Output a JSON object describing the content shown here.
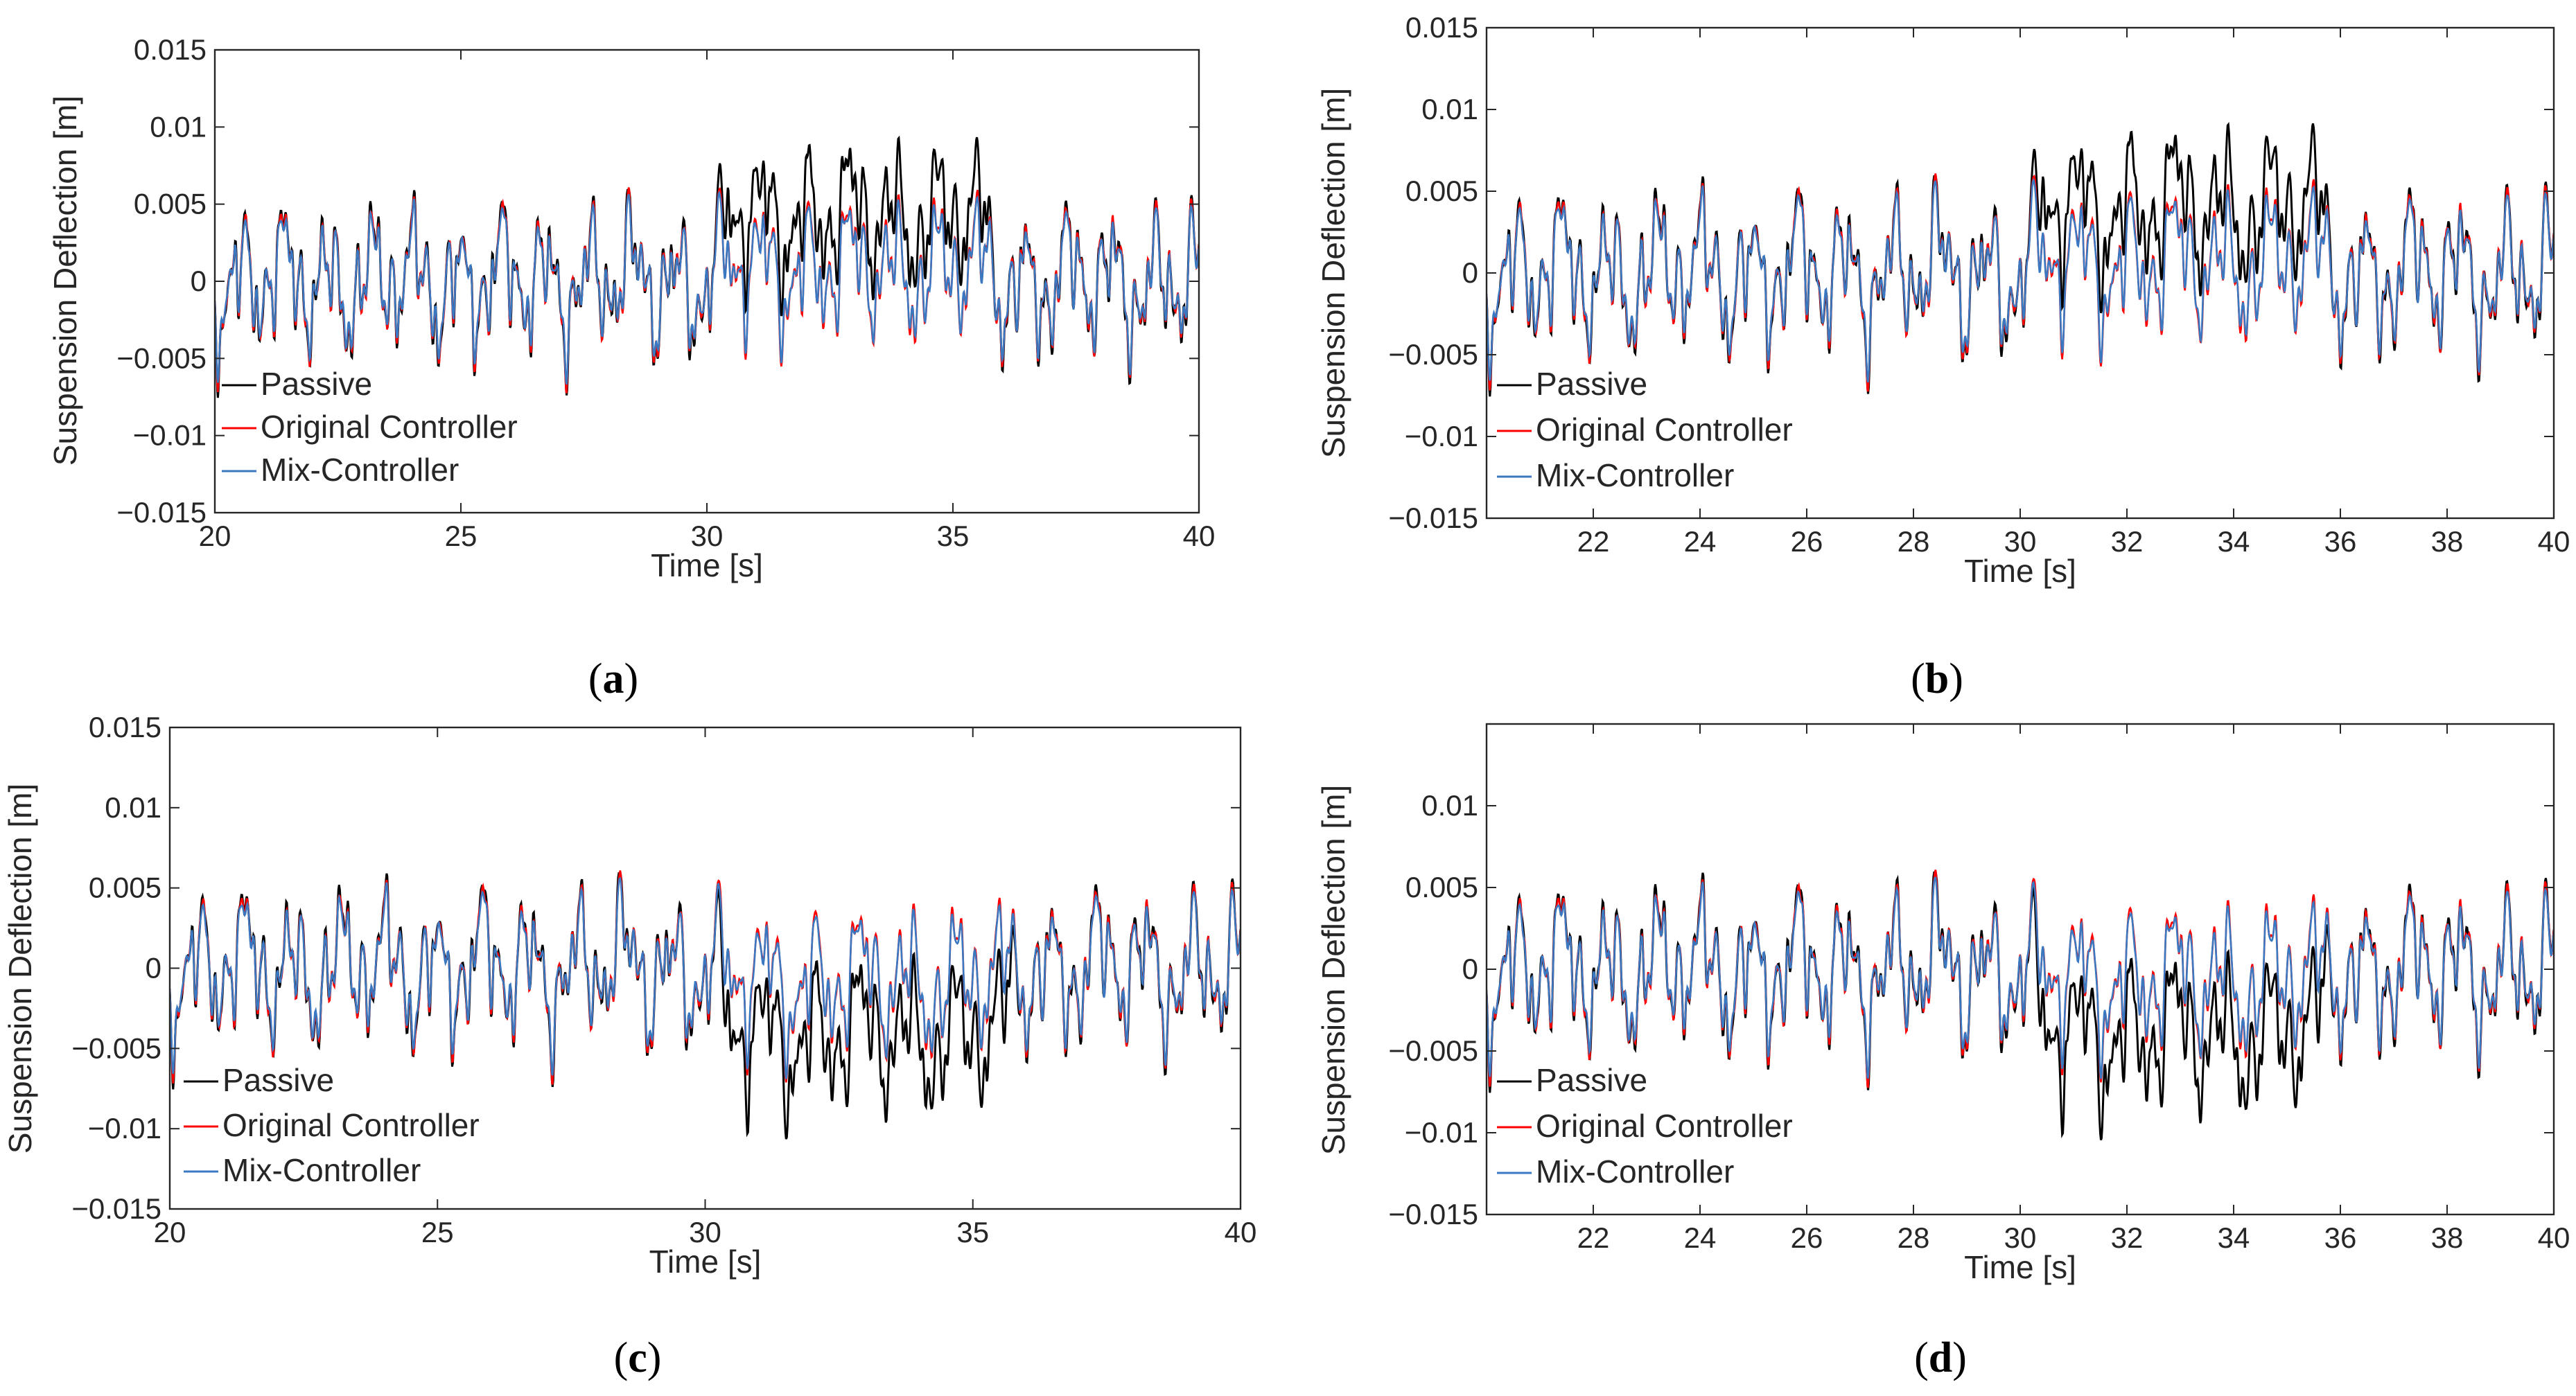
{
  "chart_data": [
    {
      "id": "a",
      "type": "line",
      "caption": "a",
      "xlabel": "Time [s]",
      "ylabel": "Suspension Deflection [m]",
      "xlim": [
        20,
        40
      ],
      "ylim": [
        -0.015,
        0.015
      ],
      "xticks": [
        20,
        25,
        30,
        35,
        40
      ],
      "yticks": [
        -0.015,
        -0.01,
        -0.005,
        0,
        0.005,
        0.01,
        0.015
      ],
      "xtick_labels": [
        "20",
        "25",
        "30",
        "35",
        "40"
      ],
      "ytick_labels": [
        "−0.015",
        "−0.01",
        "−0.005",
        "0",
        "0.005",
        "0.01",
        "0.015"
      ],
      "legend_placement": "lower-left",
      "disturbance": {
        "start": 30.3,
        "end": 35.7,
        "direction": 1,
        "passive_offset": 0.0042,
        "controlled_offset": 0.0008
      },
      "series": [
        {
          "name": "Passive",
          "color": "#000000"
        },
        {
          "name": "Original Controller",
          "color": "#ff0000"
        },
        {
          "name": "Mix-Controller",
          "color": "#3a78c2"
        }
      ]
    },
    {
      "id": "b",
      "type": "line",
      "caption": "b",
      "xlabel": "Time [s]",
      "ylabel": "Suspension Deflection [m]",
      "xlim": [
        20,
        40
      ],
      "ylim": [
        -0.015,
        0.015
      ],
      "xticks": [
        22,
        24,
        26,
        28,
        30,
        32,
        34,
        36,
        38,
        40
      ],
      "yticks": [
        -0.015,
        -0.01,
        -0.005,
        0,
        0.005,
        0.01,
        0.015
      ],
      "xtick_labels": [
        "22",
        "24",
        "26",
        "28",
        "30",
        "32",
        "34",
        "36",
        "38",
        "40"
      ],
      "ytick_labels": [
        "−0.015",
        "−0.01",
        "−0.005",
        "0",
        "0.005",
        "0.01",
        "0.015"
      ],
      "legend_placement": "lower-left",
      "disturbance": {
        "start": 30.3,
        "end": 35.7,
        "direction": 1,
        "passive_offset": 0.004,
        "controlled_offset": 0.0006
      },
      "series": [
        {
          "name": "Passive",
          "color": "#000000"
        },
        {
          "name": "Original Controller",
          "color": "#ff0000"
        },
        {
          "name": "Mix-Controller",
          "color": "#3a78c2"
        }
      ]
    },
    {
      "id": "c",
      "type": "line",
      "caption": "c",
      "xlabel": "Time [s]",
      "ylabel": "Suspension Deflection [m]",
      "xlim": [
        20,
        40
      ],
      "ylim": [
        -0.015,
        0.015
      ],
      "xticks": [
        20,
        25,
        30,
        35,
        40
      ],
      "yticks": [
        -0.015,
        -0.01,
        -0.005,
        0,
        0.005,
        0.01,
        0.015
      ],
      "xtick_labels": [
        "20",
        "25",
        "30",
        "35",
        "40"
      ],
      "ytick_labels": [
        "−0.015",
        "−0.01",
        "−0.005",
        "0",
        "0.005",
        "0.01",
        "0.015"
      ],
      "legend_placement": "lower-left",
      "disturbance": {
        "start": 30.3,
        "end": 35.7,
        "direction": -1,
        "passive_offset": 0.0042,
        "controlled_offset": 0.0008
      },
      "series": [
        {
          "name": "Passive",
          "color": "#000000"
        },
        {
          "name": "Original Controller",
          "color": "#ff0000"
        },
        {
          "name": "Mix-Controller",
          "color": "#3a78c2"
        }
      ]
    },
    {
      "id": "d",
      "type": "line",
      "caption": "d",
      "xlabel": "Time [s]",
      "ylabel": "Suspension Deflection [m]",
      "xlim": [
        20,
        40
      ],
      "ylim": [
        -0.015,
        0.015
      ],
      "xticks": [
        22,
        24,
        26,
        28,
        30,
        32,
        34,
        36,
        38,
        40
      ],
      "yticks": [
        -0.015,
        -0.01,
        -0.005,
        0,
        0.005,
        0.01
      ],
      "xtick_labels": [
        "22",
        "24",
        "26",
        "28",
        "30",
        "32",
        "34",
        "36",
        "38",
        "40"
      ],
      "ytick_labels": [
        "−0.015",
        "−0.01",
        "−0.005",
        "0",
        "0.005",
        "0.01"
      ],
      "legend_placement": "lower-left",
      "disturbance": {
        "start": 30.3,
        "end": 35.7,
        "direction": -1,
        "passive_offset": 0.004,
        "controlled_offset": 0.0006
      },
      "series": [
        {
          "name": "Passive",
          "color": "#000000"
        },
        {
          "name": "Original Controller",
          "color": "#ff0000"
        },
        {
          "name": "Mix-Controller",
          "color": "#3a78c2"
        }
      ]
    }
  ]
}
